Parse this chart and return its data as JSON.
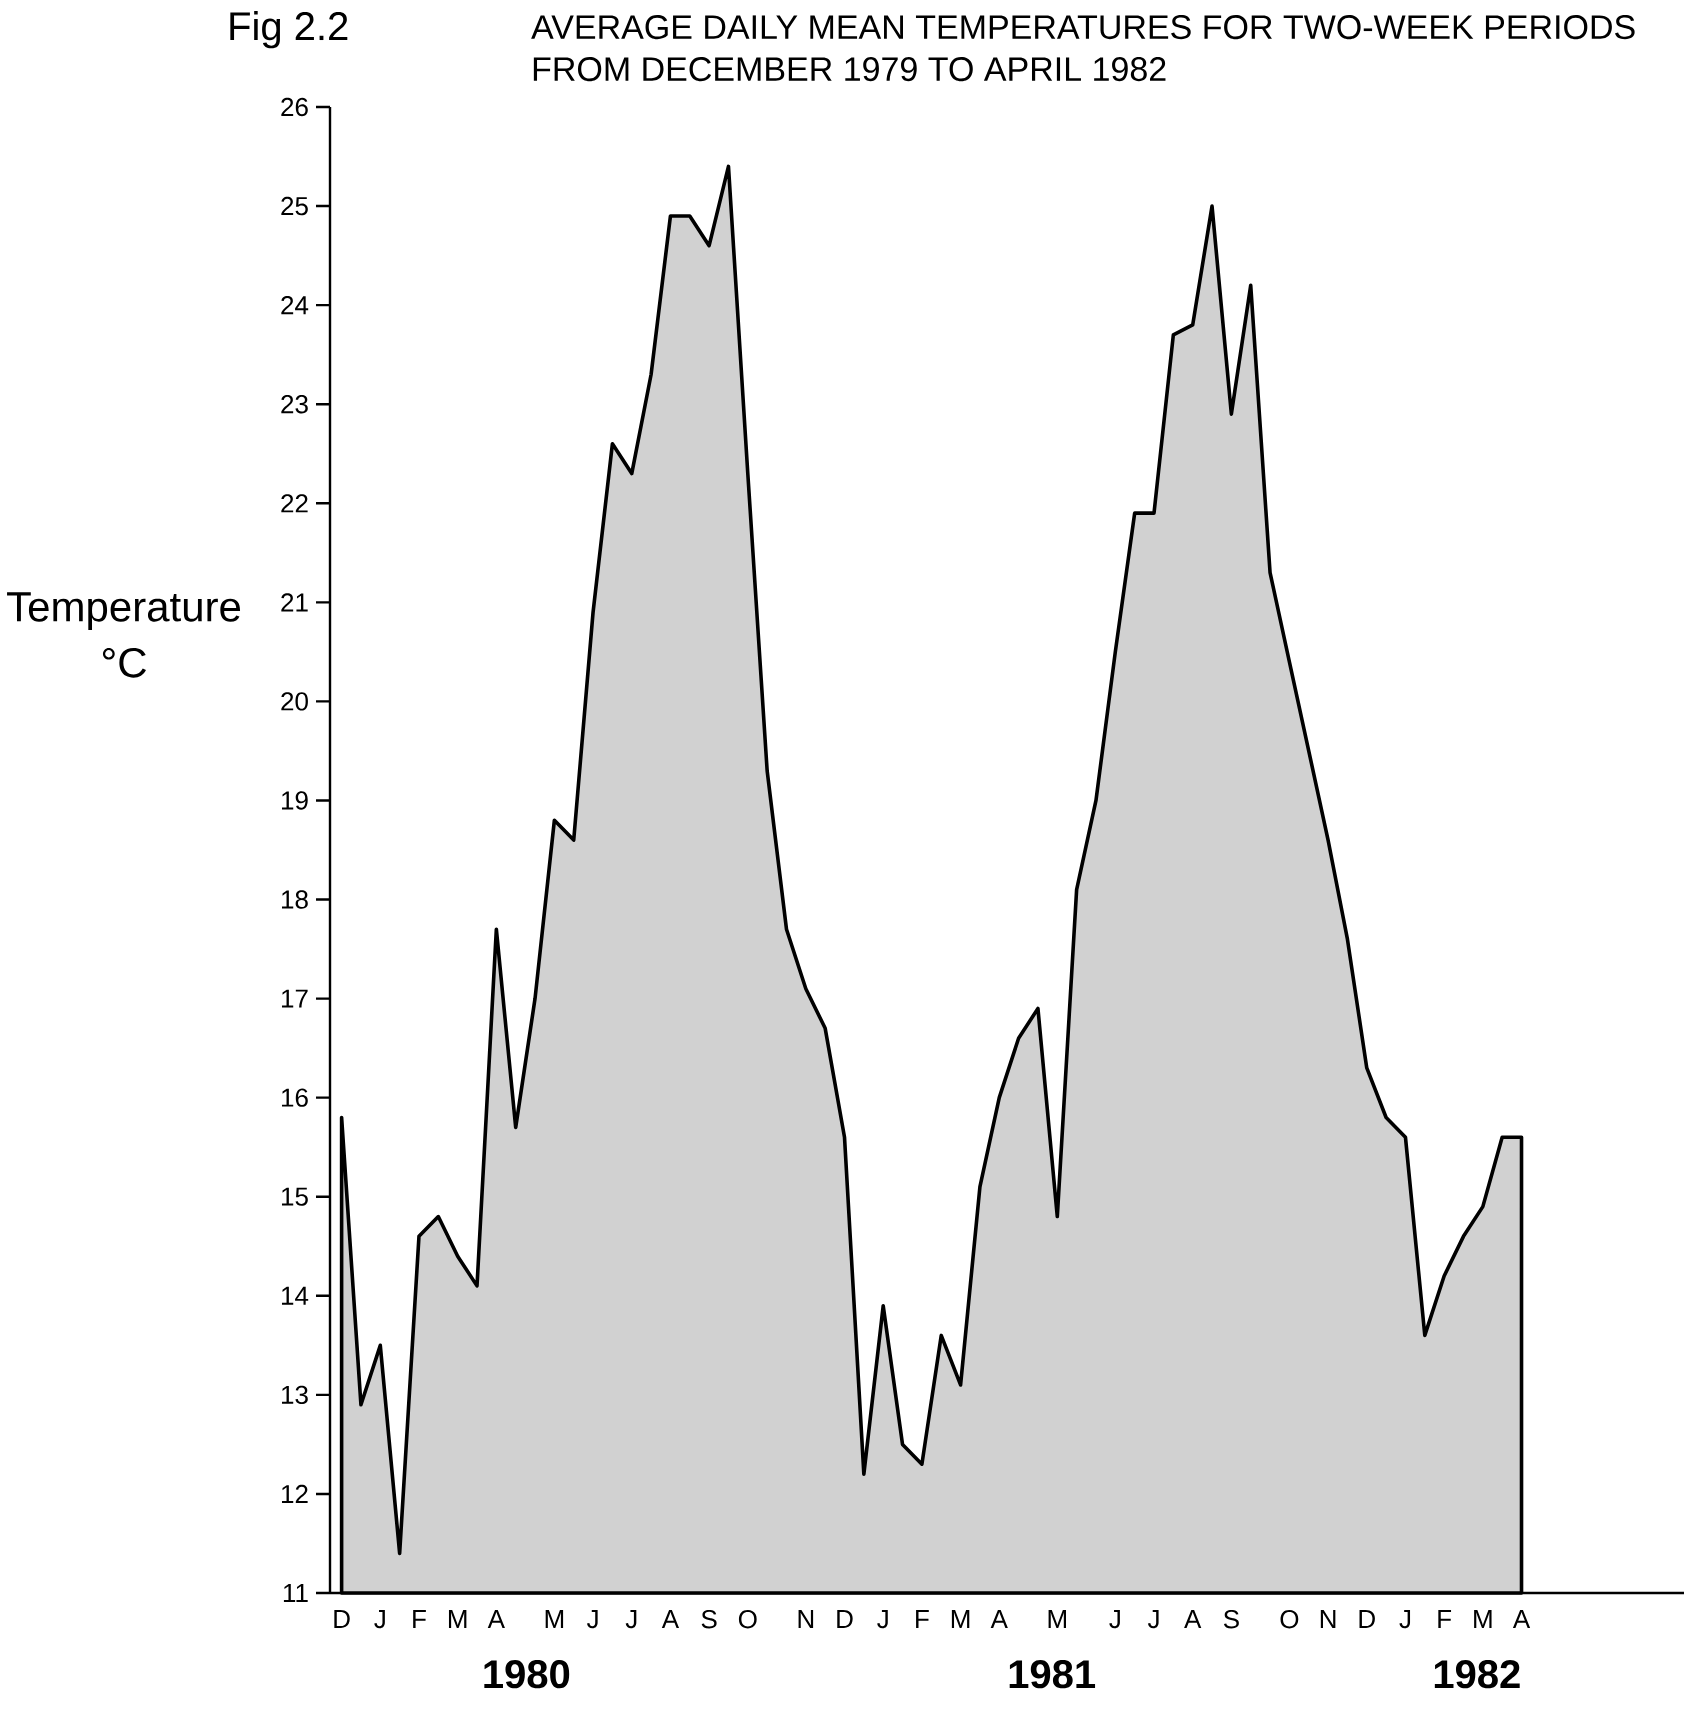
{
  "chart_data": {
    "type": "area",
    "title": "AVERAGE DAILY MEAN TEMPERATURES FOR TWO-WEEK PERIODS",
    "subtitle": "FROM DECEMBER 1979 TO APRIL 1982",
    "ylabel": "Temperature °C",
    "annotations": [
      "Fig 2.2",
      "1980",
      "1981",
      "1982"
    ],
    "categories": [
      "D",
      null,
      "J",
      null,
      "F",
      null,
      "M",
      null,
      "A",
      null,
      null,
      "M",
      null,
      "J",
      null,
      "J",
      null,
      "A",
      null,
      "S",
      null,
      "O",
      null,
      null,
      "N",
      null,
      "D",
      null,
      "J",
      null,
      "F",
      null,
      "M",
      null,
      "A",
      null,
      null,
      "M",
      null,
      null,
      "J",
      null,
      "J",
      null,
      "A",
      null,
      "S",
      null,
      null,
      "O",
      null,
      "N",
      null,
      "D",
      null,
      "J",
      null,
      "F",
      null,
      "M",
      null,
      "A"
    ],
    "series": [
      {
        "color": "#000000",
        "values": [
          15.8,
          12.9,
          13.5,
          11.4,
          14.6,
          14.8,
          14.4,
          14.1,
          17.7,
          15.7,
          17.0,
          18.8,
          18.6,
          20.9,
          22.6,
          22.3,
          23.3,
          24.9,
          24.9,
          24.6,
          25.4,
          22.3,
          19.3,
          17.7,
          17.1,
          16.7,
          15.6,
          12.2,
          13.9,
          12.5,
          12.3,
          13.6,
          13.1,
          15.1,
          16.0,
          16.6,
          16.9,
          14.8,
          18.1,
          19.0,
          20.5,
          21.9,
          21.9,
          23.7,
          23.8,
          25.0,
          22.9,
          24.2,
          21.3,
          20.4,
          19.5,
          18.6,
          17.6,
          16.3,
          15.8,
          15.6,
          13.6,
          14.2,
          14.6,
          14.9,
          15.6,
          15.6
        ]
      }
    ],
    "ylim": [
      11,
      26
    ],
    "yticks": [
      11,
      12,
      13,
      14,
      15,
      16,
      17,
      18,
      19,
      20,
      21,
      22,
      23,
      24,
      25,
      26
    ]
  }
}
